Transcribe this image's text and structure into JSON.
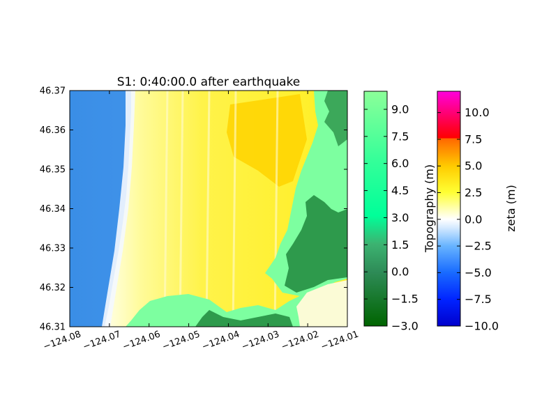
{
  "chart_data": {
    "type": "heatmap",
    "title": "S1: 0:40:00.0 after earthquake",
    "xlabel": "",
    "ylabel": "",
    "x_ticks": [
      "−124.08",
      "−124.07",
      "−124.06",
      "−124.05",
      "−124.04",
      "−124.03",
      "−124.02",
      "−124.01"
    ],
    "x_tick_values": [
      -124.08,
      -124.07,
      -124.06,
      -124.05,
      -124.04,
      -124.03,
      -124.02,
      -124.01
    ],
    "y_ticks": [
      "46.31",
      "46.32",
      "46.33",
      "46.34",
      "46.35",
      "46.36",
      "46.37"
    ],
    "y_tick_values": [
      46.31,
      46.32,
      46.33,
      46.34,
      46.35,
      46.36,
      46.37
    ],
    "xlim": [
      -124.08,
      -124.01
    ],
    "ylim": [
      46.31,
      46.37
    ],
    "grid": false,
    "regions": [
      {
        "field": "zeta",
        "description_value": "ocean",
        "zeta_approx": -4.5
      },
      {
        "field": "zeta",
        "description_value": "inundated coastal plain",
        "zeta_approx": 3.0
      },
      {
        "field": "topography",
        "description_value": "dry land",
        "topo_range": [
          -3.0,
          9.0
        ]
      }
    ],
    "colorbars": [
      {
        "label": "Topography (m)",
        "range": [
          -3.0,
          10.0
        ],
        "ticks": [
          "9.0",
          "7.5",
          "6.0",
          "4.5",
          "3.0",
          "1.5",
          "0.0",
          "−1.5",
          "−3.0"
        ],
        "tick_values": [
          9.0,
          7.5,
          6.0,
          4.5,
          3.0,
          1.5,
          0.0,
          -1.5,
          -3.0
        ],
        "colormap": [
          "#006400",
          "#2e8b57",
          "#00ff99",
          "#33ff99",
          "#80ff99"
        ]
      },
      {
        "label": "zeta (m)",
        "range": [
          -10.0,
          12.0
        ],
        "ticks": [
          "10.0",
          "7.5",
          "5.0",
          "2.5",
          "0.0",
          "−2.5",
          "−5.0",
          "−7.5",
          "−10.0"
        ],
        "tick_values": [
          10.0,
          7.5,
          5.0,
          2.5,
          0.0,
          -2.5,
          -5.0,
          -7.5,
          -10.0
        ],
        "colormap": [
          "#0000cc",
          "#1a5cff",
          "#66b3ff",
          "#ffffff",
          "#ffff66",
          "#ffdd00",
          "#ff8800",
          "#ff0000",
          "#ff00cc"
        ]
      }
    ]
  }
}
